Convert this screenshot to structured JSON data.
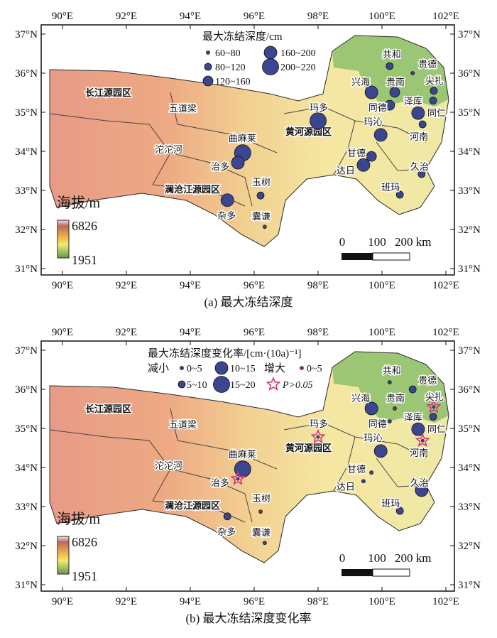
{
  "axes": {
    "lon_ticks": [
      "90°E",
      "92°E",
      "94°E",
      "96°E",
      "98°E",
      "100°E",
      "102°E"
    ],
    "lat_ticks": [
      "37°N",
      "36°N",
      "35°N",
      "34°N",
      "33°N",
      "32°N",
      "31°N"
    ],
    "lon_values": [
      90,
      92,
      94,
      96,
      98,
      100,
      102
    ],
    "lat_values": [
      37,
      36,
      35,
      34,
      33,
      32,
      31
    ]
  },
  "parks": [
    "长江源园区",
    "黄河源园区",
    "澜沧江源园区"
  ],
  "regions": [
    "五道梁",
    "沱沱河"
  ],
  "elevation_legend": {
    "title": "海拔/m",
    "max": "6826",
    "min": "1951"
  },
  "scale_bar": {
    "labels": [
      "0",
      "100",
      "200 km"
    ]
  },
  "colors": {
    "dot": "#3b4590",
    "increase": "#8b3a2a",
    "star": "#d4357f"
  },
  "stations": [
    {
      "name": "共和",
      "lon": 100.24,
      "lat": 36.18,
      "a_class": 1,
      "b": "dec0"
    },
    {
      "name": "贵德",
      "lon": 100.96,
      "lat": 36.0,
      "a_class": 0,
      "b": "dec1"
    },
    {
      "name": "兴海",
      "lon": 99.67,
      "lat": 35.51,
      "a_class": 3,
      "b": "dec2"
    },
    {
      "name": "贵南",
      "lon": 100.4,
      "lat": 35.51,
      "a_class": 2,
      "b": "inc0"
    },
    {
      "name": "尖扎",
      "lon": 101.62,
      "lat": 35.55,
      "a_class": 1,
      "b": "star"
    },
    {
      "name": "同德",
      "lon": 100.24,
      "lat": 35.18,
      "a_class": 2,
      "b": "dec0"
    },
    {
      "name": "泽库",
      "lon": 101.13,
      "lat": 34.98,
      "a_class": 3,
      "b": "dec2"
    },
    {
      "name": "同仁",
      "lon": 101.6,
      "lat": 35.3,
      "a_class": 1,
      "b": "dec1"
    },
    {
      "name": "河南",
      "lon": 101.27,
      "lat": 34.69,
      "a_class": 1,
      "b": "star"
    },
    {
      "name": "玛多",
      "lon": 98.0,
      "lat": 34.78,
      "a_class": 4,
      "b": "star"
    },
    {
      "name": "玛沁",
      "lon": 99.96,
      "lat": 34.42,
      "a_class": 3,
      "b": "dec2"
    },
    {
      "name": "甘德",
      "lon": 99.67,
      "lat": 33.87,
      "a_class": 2,
      "b": "dec0"
    },
    {
      "name": "达日",
      "lon": 99.42,
      "lat": 33.65,
      "a_class": 3,
      "b": "dec0"
    },
    {
      "name": "久治",
      "lon": 101.24,
      "lat": 33.42,
      "a_class": 1,
      "b": "dec2"
    },
    {
      "name": "班玛",
      "lon": 100.56,
      "lat": 32.89,
      "a_class": 1,
      "b": "dec1"
    },
    {
      "name": "曲麻莱",
      "lon": 95.64,
      "lat": 33.96,
      "a_class": 4,
      "b": "dec3"
    },
    {
      "name": "治多",
      "lon": 95.49,
      "lat": 33.71,
      "a_class": 3,
      "b": "star"
    },
    {
      "name": "玉树",
      "lon": 96.2,
      "lat": 32.87,
      "a_class": 1,
      "b": "inc0"
    },
    {
      "name": "杂多",
      "lon": 95.16,
      "lat": 32.75,
      "a_class": 3,
      "b": "dec1"
    },
    {
      "name": "囊谦",
      "lon": 96.33,
      "lat": 32.07,
      "a_class": 0,
      "b": "dec0"
    }
  ],
  "panel_a": {
    "caption": "(a) 最大冻结深度",
    "legend_title": "最大冻结深度/cm",
    "classes": [
      "60~80",
      "80~120",
      "120~160",
      "160~200",
      "200~220"
    ]
  },
  "panel_b": {
    "caption": "(b) 最大冻结深度变化率",
    "legend_title": "最大冻结深度变化率/[cm·(10a)⁻¹]",
    "decrease_label": "减小",
    "increase_label": "增大",
    "dec_classes": [
      "0~5",
      "5~10",
      "10~15",
      "15~20"
    ],
    "inc_classes": [
      "0~5"
    ],
    "star_label": "P>0.05"
  }
}
